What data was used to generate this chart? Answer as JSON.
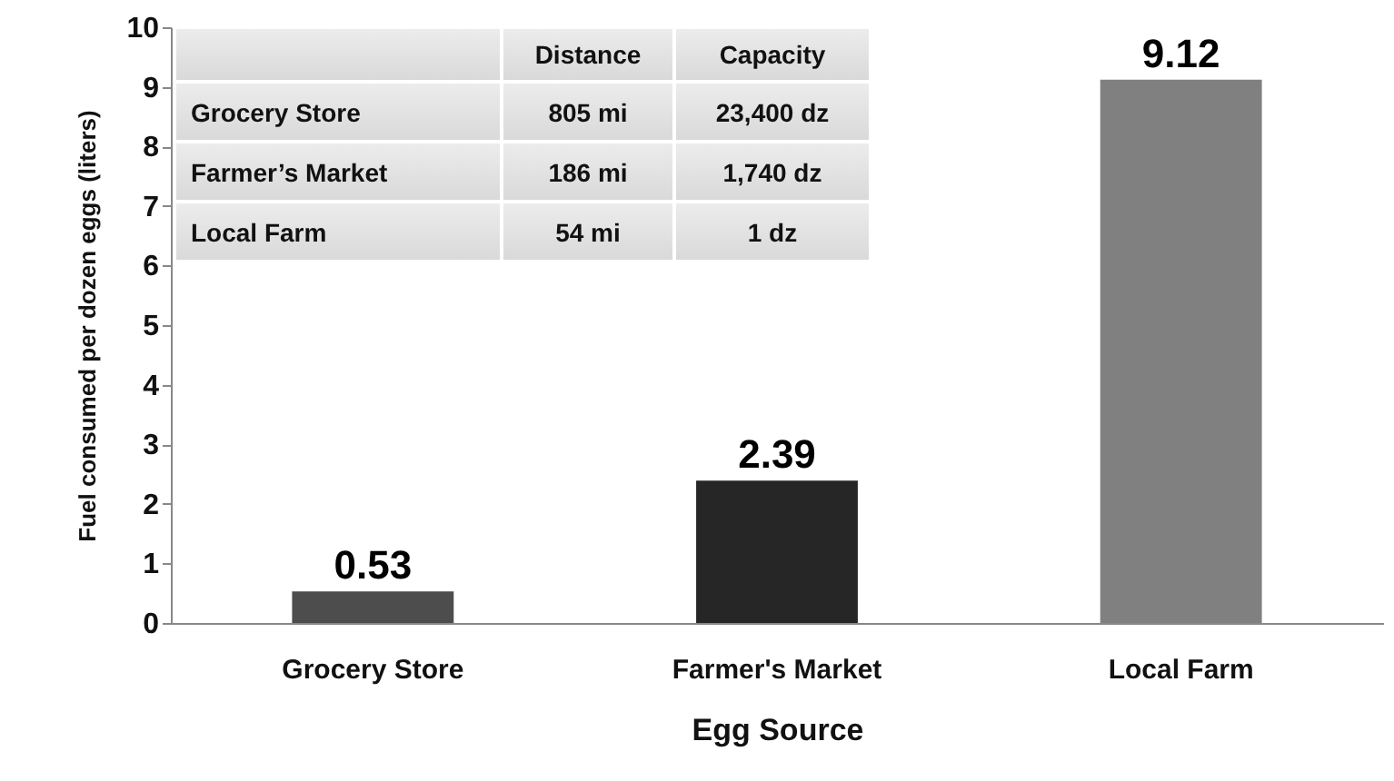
{
  "chart_data": {
    "type": "bar",
    "xlabel": "Egg Source",
    "ylabel": "Fuel consumed per dozen eggs (liters)",
    "categories": [
      "Grocery Store",
      "Farmer's Market",
      "Local Farm"
    ],
    "values": [
      0.53,
      2.39,
      9.12
    ],
    "colors": [
      "#4d4d4d",
      "#262626",
      "#808080"
    ],
    "ylim": [
      0,
      10
    ],
    "yticks": [
      0,
      1,
      2,
      3,
      4,
      5,
      6,
      7,
      8,
      9,
      10
    ],
    "data_labels": true,
    "annotations": [
      "Distance",
      "Capacity",
      "Grocery Store",
      "805 mi",
      "23,400 dz",
      "Farmer’s Market",
      "186 mi",
      "1,740 dz",
      "Local Farm",
      "54 mi",
      "1 dz"
    ]
  }
}
